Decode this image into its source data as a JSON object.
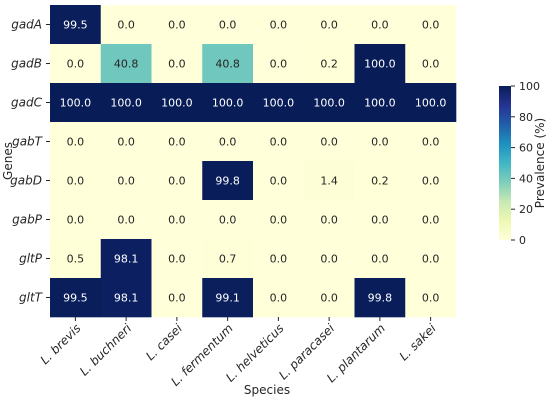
{
  "chart_data": {
    "type": "heatmap",
    "title": "",
    "xlabel": "Species",
    "ylabel": "Genes",
    "rows": [
      "gadA",
      "gadB",
      "gadC",
      "gabT",
      "gabD",
      "gabP",
      "gltP",
      "gltT"
    ],
    "columns": [
      "L. brevis",
      "L. buchneri",
      "L. casei",
      "L. fermentum",
      "L. helveticus",
      "L. paracasei",
      "L. plantarum",
      "L. sakei"
    ],
    "values": [
      [
        99.5,
        0.0,
        0.0,
        0.0,
        0.0,
        0.0,
        0.0,
        0.0
      ],
      [
        0.0,
        40.8,
        0.0,
        40.8,
        0.0,
        0.2,
        100.0,
        0.0
      ],
      [
        100.0,
        100.0,
        100.0,
        100.0,
        100.0,
        100.0,
        100.0,
        100.0
      ],
      [
        0.0,
        0.0,
        0.0,
        0.0,
        0.0,
        0.0,
        0.0,
        0.0
      ],
      [
        0.0,
        0.0,
        0.0,
        99.8,
        0.0,
        1.4,
        0.2,
        0.0
      ],
      [
        0.0,
        0.0,
        0.0,
        0.0,
        0.0,
        0.0,
        0.0,
        0.0
      ],
      [
        0.5,
        98.1,
        0.0,
        0.7,
        0.0,
        0.0,
        0.0,
        0.0
      ],
      [
        99.5,
        98.1,
        0.0,
        99.1,
        0.0,
        0.0,
        99.8,
        0.0
      ]
    ],
    "colorbar": {
      "label": "Prevalence (%)",
      "ticks": [
        "0",
        "20",
        "40",
        "60",
        "80",
        "100"
      ],
      "range": [
        0,
        100
      ],
      "colormap": "YlGnBu",
      "colors": [
        "#ffffd9",
        "#edf8b1",
        "#c7e9b4",
        "#7fcdbb",
        "#41b6c4",
        "#1d91c0",
        "#225ea8",
        "#253494",
        "#081d58"
      ]
    },
    "legend": "colorbar-right",
    "grid": false
  }
}
